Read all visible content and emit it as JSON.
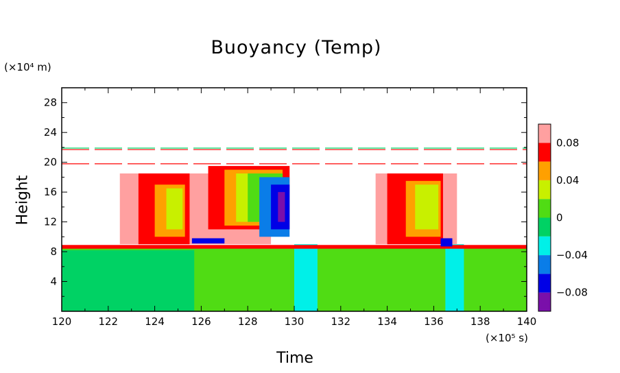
{
  "chart_data": {
    "type": "heatmap",
    "title": "Buoyancy (Temp)",
    "xlabel": "Time",
    "ylabel": "Height",
    "x_unit": "(×10⁵ s)",
    "y_unit": "(×10⁴ m)",
    "xlim": [
      120,
      140
    ],
    "ylim": [
      0,
      30
    ],
    "x_ticks": [
      "120",
      "122",
      "124",
      "126",
      "128",
      "130",
      "132",
      "134",
      "136",
      "138",
      "140"
    ],
    "y_ticks": [
      "4",
      "8",
      "12",
      "16",
      "20",
      "24",
      "28"
    ],
    "colorbar": {
      "ticks": [
        "0.08",
        "0.04",
        "0",
        "−0.04",
        "−0.08"
      ],
      "levels": [
        -0.1,
        -0.08,
        -0.06,
        -0.04,
        -0.02,
        0,
        0.02,
        0.04,
        0.06,
        0.08,
        0.1
      ],
      "colors": [
        "#7a0faa",
        "#0000e6",
        "#0a7de8",
        "#00f0e8",
        "#00d264",
        "#50dc14",
        "#c8f000",
        "#ffa000",
        "#ff0000",
        "#ffa0a0"
      ]
    },
    "regions": [
      {
        "value": 0.01,
        "color": "#50dc14",
        "t0": 120,
        "t1": 140,
        "h0": 0,
        "h1": 8.5
      },
      {
        "value": -0.01,
        "color": "#00d264",
        "t0": 120,
        "t1": 125.7,
        "h0": 0,
        "h1": 8.2
      },
      {
        "value": -0.03,
        "color": "#00f0e8",
        "t0": 130,
        "t1": 131,
        "h0": 0,
        "h1": 9
      },
      {
        "value": -0.03,
        "color": "#00f0e8",
        "t0": 136.5,
        "t1": 137.3,
        "h0": 0,
        "h1": 9
      },
      {
        "value": 0.07,
        "color": "#ff0000",
        "t0": 120,
        "t1": 140,
        "h0": 8.4,
        "h1": 8.9
      },
      {
        "value": 0.09,
        "color": "#ffa0a0",
        "t0": 122.5,
        "t1": 129,
        "h0": 9,
        "h1": 18.5
      },
      {
        "value": 0.07,
        "color": "#ff0000",
        "t0": 123.3,
        "t1": 125.5,
        "h0": 9,
        "h1": 18.5
      },
      {
        "value": 0.05,
        "color": "#ffa000",
        "t0": 124,
        "t1": 125.3,
        "h0": 10,
        "h1": 17
      },
      {
        "value": 0.03,
        "color": "#c8f000",
        "t0": 124.5,
        "t1": 125.2,
        "h0": 11,
        "h1": 16.5
      },
      {
        "value": 0.07,
        "color": "#ff0000",
        "t0": 126.3,
        "t1": 129.8,
        "h0": 11,
        "h1": 19.5
      },
      {
        "value": 0.05,
        "color": "#ffa000",
        "t0": 127,
        "t1": 129.5,
        "h0": 11.5,
        "h1": 19
      },
      {
        "value": 0.03,
        "color": "#c8f000",
        "t0": 127.5,
        "t1": 129.5,
        "h0": 12,
        "h1": 18.5
      },
      {
        "value": 0.01,
        "color": "#50dc14",
        "t0": 128,
        "t1": 129.5,
        "h0": 12,
        "h1": 18.5
      },
      {
        "value": -0.05,
        "color": "#0a7de8",
        "t0": 128.5,
        "t1": 129.8,
        "h0": 10,
        "h1": 18
      },
      {
        "value": -0.07,
        "color": "#0000e6",
        "t0": 129,
        "t1": 129.8,
        "h0": 11,
        "h1": 17
      },
      {
        "value": -0.09,
        "color": "#7a0faa",
        "t0": 129.3,
        "t1": 129.6,
        "h0": 12,
        "h1": 16
      },
      {
        "value": 0.09,
        "color": "#ffa0a0",
        "t0": 133.5,
        "t1": 137,
        "h0": 9,
        "h1": 18.5
      },
      {
        "value": 0.07,
        "color": "#ff0000",
        "t0": 134,
        "t1": 136.4,
        "h0": 9,
        "h1": 18.5
      },
      {
        "value": 0.05,
        "color": "#ffa000",
        "t0": 134.8,
        "t1": 136.3,
        "h0": 10,
        "h1": 17.5
      },
      {
        "value": 0.03,
        "color": "#c8f000",
        "t0": 135.2,
        "t1": 136.2,
        "h0": 11,
        "h1": 17
      },
      {
        "value": -0.07,
        "color": "#0000e6",
        "t0": 125.6,
        "t1": 127,
        "h0": 9.1,
        "h1": 9.8
      },
      {
        "value": -0.07,
        "color": "#0000e6",
        "t0": 136.3,
        "t1": 136.8,
        "h0": 8.7,
        "h1": 9.8
      }
    ]
  }
}
